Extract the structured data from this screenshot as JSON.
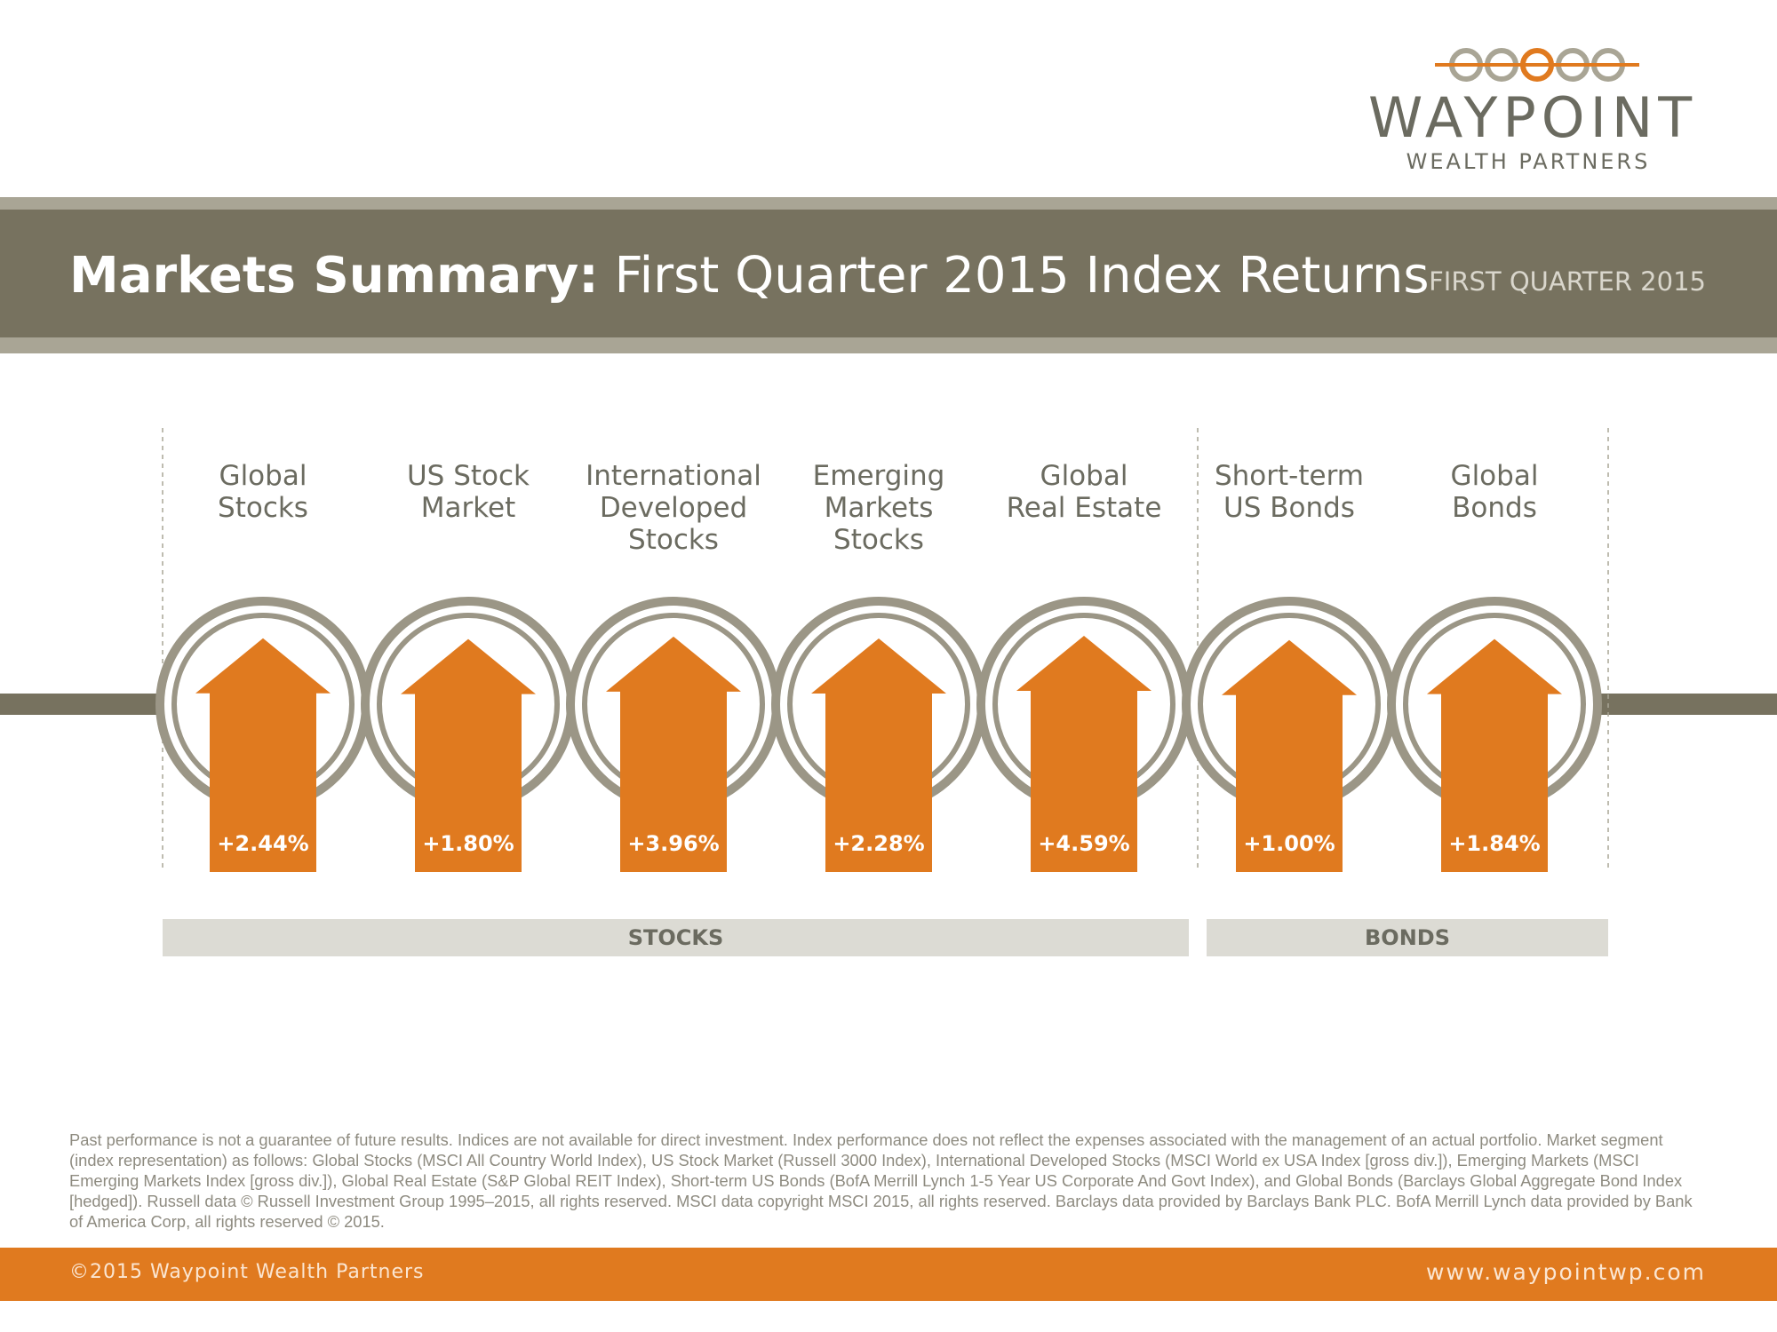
{
  "logo": {
    "name": "WAYPOINT",
    "subtitle": "WEALTH PARTNERS"
  },
  "header": {
    "title_bold": "Markets Summary:",
    "title_rest": " First Quarter 2015 Index Returns",
    "quarter": "FIRST QUARTER 2015"
  },
  "chart_data": {
    "type": "bar",
    "categories": [
      "Global\nStocks",
      "US Stock\nMarket",
      "International\nDeveloped\nStocks",
      "Emerging\nMarkets\nStocks",
      "Global\nReal Estate",
      "Short-term\nUS Bonds",
      "Global\nBonds"
    ],
    "values": [
      2.44,
      1.8,
      3.96,
      2.28,
      4.59,
      1.0,
      1.84
    ],
    "value_labels": [
      "+2.44%",
      "+1.80%",
      "+3.96%",
      "+2.28%",
      "+4.59%",
      "+1.00%",
      "+1.84%"
    ],
    "groups": [
      {
        "label": "STOCKS",
        "count": 5
      },
      {
        "label": "BONDS",
        "count": 2
      }
    ]
  },
  "disclaimer": "Past performance is not a guarantee of future results. Indices are not available for direct investment. Index performance does not reflect the expenses associated with the management of an actual portfolio. Market segment (index representation) as follows: Global Stocks (MSCI All Country World Index), US Stock Market (Russell 3000 Index), International Developed Stocks (MSCI World ex USA Index [gross div.]), Emerging Markets (MSCI Emerging Markets Index [gross div.]), Global Real Estate (S&P Global REIT Index), Short-term US Bonds (BofA Merrill Lynch 1-5 Year US Corporate And Govt Index), and Global Bonds (Barclays Global Aggregate Bond Index [hedged]). Russell data © Russell Investment Group 1995–2015, all rights reserved. MSCI data copyright MSCI 2015, all rights reserved. Barclays data provided by Barclays Bank PLC. BofA Merrill Lynch data provided by Bank of America Corp, all rights reserved © 2015.",
  "footer": {
    "copyright": "©2015 Waypoint Wealth Partners",
    "website": "www.waypointwp.com"
  },
  "colors": {
    "accent": "#e07a1f",
    "band": "#77725f",
    "ring": "#9b9686",
    "group_bar": "#dcdbd4"
  }
}
